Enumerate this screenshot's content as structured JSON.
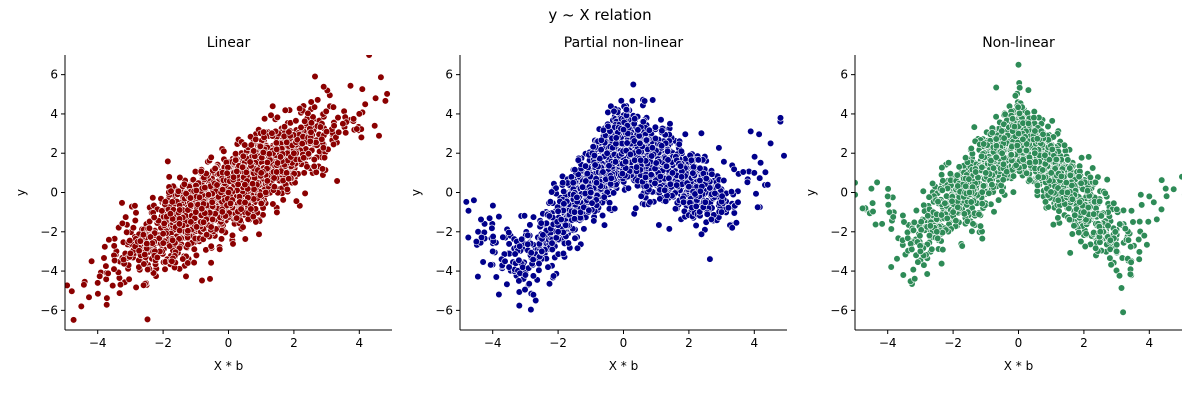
{
  "figure": {
    "suptitle": "y ~ X relation"
  },
  "chart_data": [
    {
      "type": "scatter",
      "title": "Linear",
      "xlabel": "X * b",
      "ylabel": "y",
      "xlim": [
        -5,
        5
      ],
      "ylim": [
        -7,
        7
      ],
      "xticks": [
        -4,
        -2,
        0,
        2,
        4
      ],
      "yticks": [
        -6,
        -4,
        -2,
        0,
        2,
        4,
        6
      ],
      "grid": false,
      "color": "#8b0000",
      "relation": "linear",
      "approx_points": [
        [
          -4.5,
          -5.8
        ],
        [
          -4.0,
          -4.6
        ],
        [
          -3.5,
          -3.9
        ],
        [
          -3.0,
          -3.1
        ],
        [
          -2.5,
          -2.6
        ],
        [
          -2.0,
          -2.1
        ],
        [
          -1.5,
          -1.6
        ],
        [
          -1.0,
          -1.0
        ],
        [
          -0.5,
          -0.5
        ],
        [
          0.0,
          0.0
        ],
        [
          0.5,
          0.4
        ],
        [
          1.0,
          1.0
        ],
        [
          1.5,
          1.5
        ],
        [
          2.0,
          2.0
        ],
        [
          2.5,
          2.6
        ],
        [
          3.0,
          3.1
        ],
        [
          3.5,
          3.5
        ],
        [
          4.0,
          4.0
        ],
        [
          4.5,
          4.8
        ],
        [
          4.3,
          7.0
        ]
      ]
    },
    {
      "type": "scatter",
      "title": "Partial non-linear",
      "xlabel": "X * b",
      "ylabel": "y",
      "xlim": [
        -5,
        5
      ],
      "ylim": [
        -7,
        7
      ],
      "xticks": [
        -4,
        -2,
        0,
        2,
        4
      ],
      "yticks": [
        -6,
        -4,
        -2,
        0,
        2,
        4,
        6
      ],
      "grid": false,
      "color": "#00008b",
      "relation": "partial",
      "approx_points": [
        [
          -4.5,
          -2.5
        ],
        [
          -4.0,
          -3.0
        ],
        [
          -3.5,
          -3.8
        ],
        [
          -3.2,
          -4.5
        ],
        [
          -3.0,
          -4.2
        ],
        [
          -2.5,
          -3.0
        ],
        [
          -2.0,
          -2.0
        ],
        [
          -1.5,
          -1.0
        ],
        [
          -1.0,
          0.0
        ],
        [
          -0.5,
          2.0
        ],
        [
          0.0,
          3.2
        ],
        [
          0.3,
          5.5
        ],
        [
          0.5,
          2.5
        ],
        [
          1.0,
          1.5
        ],
        [
          1.5,
          1.0
        ],
        [
          2.0,
          0.3
        ],
        [
          2.5,
          -0.5
        ],
        [
          3.0,
          -1.0
        ],
        [
          3.5,
          -0.5
        ],
        [
          4.0,
          1.0
        ],
        [
          4.5,
          2.5
        ],
        [
          4.8,
          3.8
        ]
      ]
    },
    {
      "type": "scatter",
      "title": "Non-linear",
      "xlabel": "X * b",
      "ylabel": "y",
      "xlim": [
        -5,
        5
      ],
      "ylim": [
        -7,
        7
      ],
      "xticks": [
        -4,
        -2,
        0,
        2,
        4
      ],
      "yticks": [
        -6,
        -4,
        -2,
        0,
        2,
        4,
        6
      ],
      "grid": false,
      "color": "#2e8b57",
      "relation": "peak",
      "approx_points": [
        [
          -5.0,
          0.5
        ],
        [
          -4.5,
          0.2
        ],
        [
          -4.0,
          -0.2
        ],
        [
          -3.5,
          -1.5
        ],
        [
          -3.0,
          -3.0
        ],
        [
          -2.5,
          -2.0
        ],
        [
          -2.0,
          -1.0
        ],
        [
          -1.5,
          0.0
        ],
        [
          -1.0,
          1.0
        ],
        [
          -0.5,
          2.0
        ],
        [
          0.0,
          3.0
        ],
        [
          0.0,
          6.5
        ],
        [
          0.5,
          2.0
        ],
        [
          1.0,
          1.0
        ],
        [
          1.5,
          0.0
        ],
        [
          2.0,
          -1.0
        ],
        [
          2.5,
          -2.0
        ],
        [
          3.0,
          -3.0
        ],
        [
          3.2,
          -6.1
        ],
        [
          3.5,
          -1.5
        ],
        [
          4.0,
          -0.2
        ],
        [
          4.5,
          0.2
        ],
        [
          5.0,
          0.8
        ]
      ]
    }
  ]
}
